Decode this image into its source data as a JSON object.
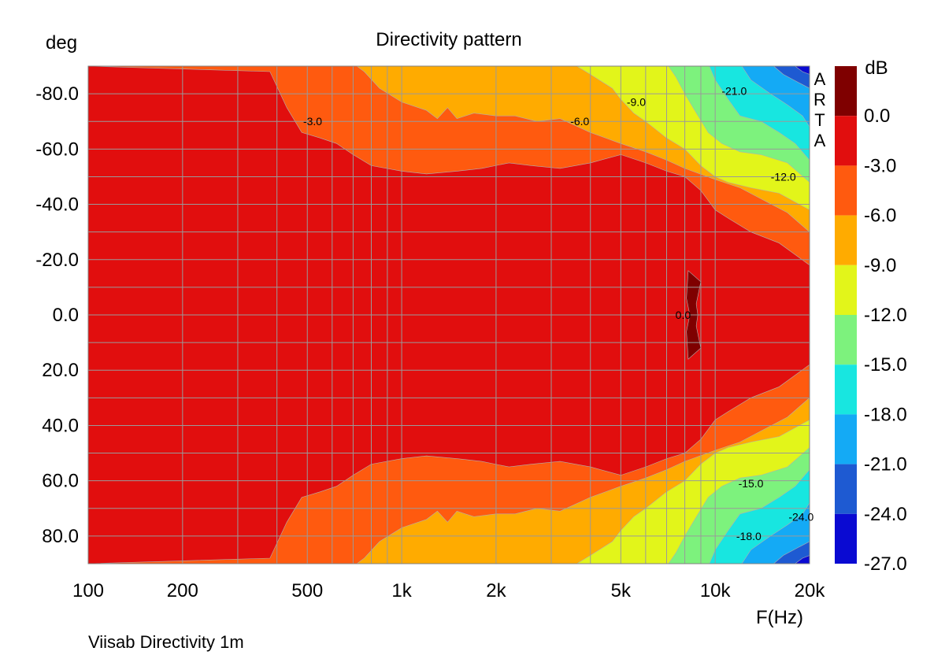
{
  "chart_data": {
    "type": "heatmap",
    "title": "Directivity pattern",
    "ylabel": "deg",
    "xlabel": "F(Hz)",
    "colorbar_label": "dB",
    "watermark": "ARTA",
    "footer": "Viisab Directivity 1m",
    "x_scale": "log",
    "xlim": [
      100,
      20000
    ],
    "ylim": [
      -90,
      90
    ],
    "y_inverted": true,
    "grid": true,
    "x_ticks": [
      {
        "value": 100,
        "label": "100"
      },
      {
        "value": 200,
        "label": "200"
      },
      {
        "value": 500,
        "label": "500"
      },
      {
        "value": 1000,
        "label": "1k"
      },
      {
        "value": 2000,
        "label": "2k"
      },
      {
        "value": 5000,
        "label": "5k"
      },
      {
        "value": 10000,
        "label": "10k"
      },
      {
        "value": 20000,
        "label": "20k"
      }
    ],
    "y_ticks": [
      {
        "value": -80,
        "label": "-80.0"
      },
      {
        "value": -60,
        "label": "-60.0"
      },
      {
        "value": -40,
        "label": "-40.0"
      },
      {
        "value": -20,
        "label": "-20.0"
      },
      {
        "value": 0,
        "label": "0.0"
      },
      {
        "value": 20,
        "label": "20.0"
      },
      {
        "value": 40,
        "label": "40.0"
      },
      {
        "value": 60,
        "label": "60.0"
      },
      {
        "value": 80,
        "label": "80.0"
      }
    ],
    "color_scale": [
      {
        "min": 0,
        "max": 3,
        "color": "#7f0000"
      },
      {
        "min": -3,
        "max": 0,
        "color": "#e10e0e"
      },
      {
        "min": -6,
        "max": -3,
        "color": "#ff5a0f"
      },
      {
        "min": -9,
        "max": -6,
        "color": "#ffab00"
      },
      {
        "min": -12,
        "max": -9,
        "color": "#e2f51a"
      },
      {
        "min": -15,
        "max": -12,
        "color": "#7df27d"
      },
      {
        "min": -18,
        "max": -15,
        "color": "#18e6e0"
      },
      {
        "min": -21,
        "max": -18,
        "color": "#14aaf5"
      },
      {
        "min": -24,
        "max": -21,
        "color": "#1e5ad2"
      },
      {
        "min": -27,
        "max": -24,
        "color": "#0a0ad2"
      }
    ],
    "colorbar_ticks": [
      "0.0",
      "-3.0",
      "-6.0",
      "-9.0",
      "-12.0",
      "-15.0",
      "-18.0",
      "-21.0",
      "-24.0",
      "-27.0"
    ],
    "contour_boundaries": [
      {
        "level": -3,
        "points": [
          [
            100,
            90
          ],
          [
            380,
            88
          ],
          [
            430,
            75
          ],
          [
            480,
            66
          ],
          [
            550,
            64
          ],
          [
            620,
            62
          ],
          [
            700,
            58
          ],
          [
            800,
            54
          ],
          [
            1000,
            52
          ],
          [
            1200,
            51
          ],
          [
            1500,
            52
          ],
          [
            1800,
            53
          ],
          [
            2200,
            55
          ],
          [
            2600,
            54
          ],
          [
            3200,
            53
          ],
          [
            4000,
            55
          ],
          [
            5000,
            58
          ],
          [
            6000,
            55
          ],
          [
            7000,
            52
          ],
          [
            8000,
            50
          ],
          [
            9000,
            45
          ],
          [
            10000,
            38
          ],
          [
            11000,
            35
          ],
          [
            13000,
            30
          ],
          [
            16000,
            26
          ],
          [
            20000,
            18
          ]
        ]
      },
      {
        "level": -6,
        "points": [
          [
            100,
            91
          ],
          [
            700,
            91
          ],
          [
            760,
            88
          ],
          [
            850,
            82
          ],
          [
            1000,
            77
          ],
          [
            1200,
            74
          ],
          [
            1300,
            71
          ],
          [
            1400,
            75
          ],
          [
            1500,
            71
          ],
          [
            1700,
            73
          ],
          [
            2000,
            72
          ],
          [
            2300,
            72
          ],
          [
            2700,
            70
          ],
          [
            3200,
            71
          ],
          [
            3500,
            69
          ],
          [
            4000,
            66
          ],
          [
            5000,
            62
          ],
          [
            6000,
            59
          ],
          [
            7000,
            56
          ],
          [
            8000,
            53
          ],
          [
            10000,
            49
          ],
          [
            12000,
            46
          ],
          [
            14000,
            42
          ],
          [
            17000,
            37
          ],
          [
            20000,
            30
          ]
        ]
      },
      {
        "level": -9,
        "points": [
          [
            100,
            91
          ],
          [
            3500,
            91
          ],
          [
            4000,
            87
          ],
          [
            4700,
            82
          ],
          [
            5000,
            78
          ],
          [
            5500,
            73
          ],
          [
            6000,
            70
          ],
          [
            7000,
            64
          ],
          [
            8000,
            60
          ],
          [
            9000,
            54
          ],
          [
            10000,
            50
          ],
          [
            11000,
            48
          ],
          [
            13000,
            46
          ],
          [
            16000,
            44
          ],
          [
            20000,
            38
          ]
        ]
      },
      {
        "level": -12,
        "points": [
          [
            100,
            91
          ],
          [
            7000,
            91
          ],
          [
            7500,
            86
          ],
          [
            8000,
            80
          ],
          [
            8500,
            75
          ],
          [
            9500,
            66
          ],
          [
            10500,
            62
          ],
          [
            12000,
            59
          ],
          [
            14000,
            58
          ],
          [
            17000,
            55
          ],
          [
            20000,
            48
          ]
        ]
      },
      {
        "level": -15,
        "points": [
          [
            100,
            91
          ],
          [
            9500,
            91
          ],
          [
            10000,
            85
          ],
          [
            11000,
            78
          ],
          [
            12000,
            72
          ],
          [
            14000,
            70
          ],
          [
            16000,
            66
          ],
          [
            18000,
            62
          ],
          [
            20000,
            56
          ]
        ]
      },
      {
        "level": -18,
        "points": [
          [
            100,
            91
          ],
          [
            12000,
            91
          ],
          [
            13000,
            85
          ],
          [
            15000,
            80
          ],
          [
            17000,
            76
          ],
          [
            19000,
            72
          ],
          [
            20000,
            68
          ]
        ]
      },
      {
        "level": -21,
        "points": [
          [
            100,
            91
          ],
          [
            15000,
            91
          ],
          [
            16500,
            87
          ],
          [
            18500,
            84
          ],
          [
            20000,
            82
          ]
        ]
      },
      {
        "level": -24,
        "points": [
          [
            100,
            91
          ],
          [
            17500,
            91
          ],
          [
            19000,
            88
          ],
          [
            20000,
            87
          ]
        ]
      }
    ],
    "peak_region": {
      "level": 0,
      "points": [
        [
          8200,
          -16
        ],
        [
          9000,
          -12
        ],
        [
          8700,
          -4
        ],
        [
          8800,
          0
        ],
        [
          8700,
          4
        ],
        [
          9000,
          12
        ],
        [
          8200,
          16
        ],
        [
          8100,
          6
        ],
        [
          8300,
          0
        ],
        [
          8100,
          -6
        ]
      ]
    },
    "contour_labels": [
      {
        "text": "-3.0",
        "x": 520,
        "y": -70
      },
      {
        "text": "-6.0",
        "x": 3700,
        "y": -70
      },
      {
        "text": "-9.0",
        "x": 5600,
        "y": -77
      },
      {
        "text": "-21.0",
        "x": 11500,
        "y": -81
      },
      {
        "text": "-12.0",
        "x": 16500,
        "y": -50
      },
      {
        "text": "0.0",
        "x": 7900,
        "y": 0
      },
      {
        "text": "-15.0",
        "x": 13000,
        "y": 61
      },
      {
        "text": "-24.0",
        "x": 18800,
        "y": 73
      },
      {
        "text": "-18.0",
        "x": 12800,
        "y": 80
      }
    ]
  }
}
